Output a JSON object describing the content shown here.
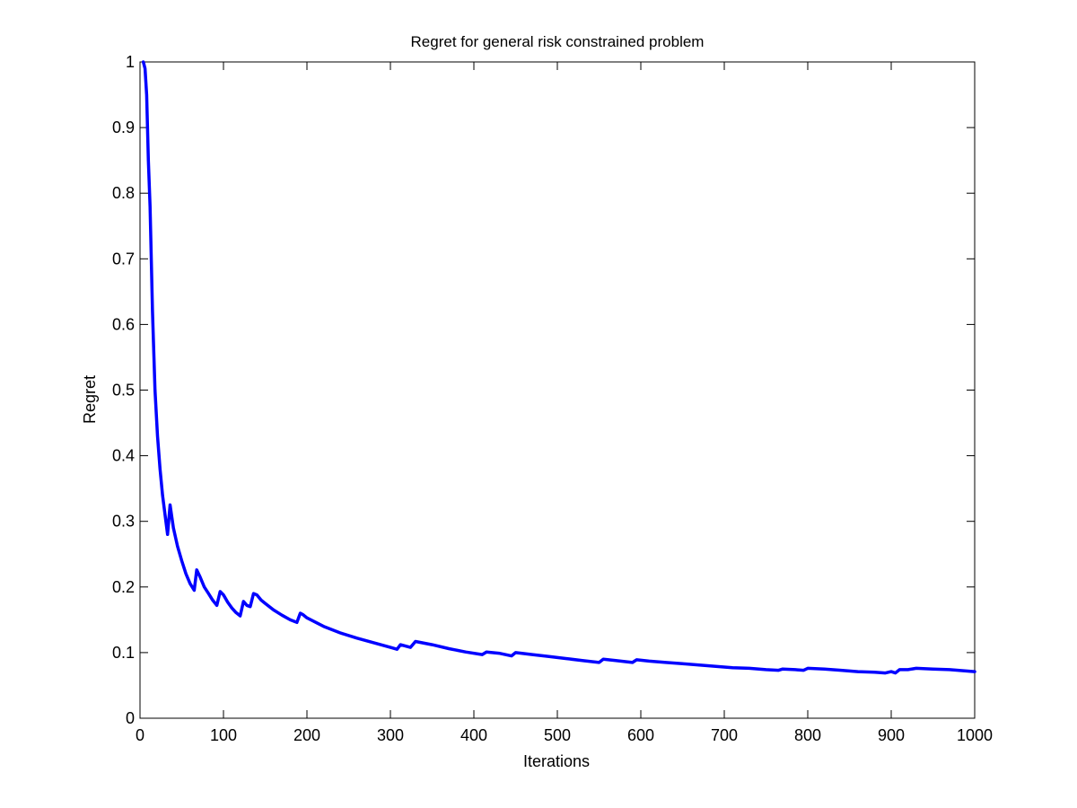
{
  "chart_data": {
    "type": "line",
    "title": "Regret for general risk constrained problem",
    "xlabel": "Iterations",
    "ylabel": "Regret",
    "xlim": [
      0,
      1000
    ],
    "ylim": [
      0,
      1
    ],
    "x_ticks": [
      0,
      100,
      200,
      300,
      400,
      500,
      600,
      700,
      800,
      900,
      1000
    ],
    "y_ticks": [
      0,
      0.1,
      0.2,
      0.3,
      0.4,
      0.5,
      0.6,
      0.7,
      0.8,
      0.9,
      1
    ],
    "x_tick_labels": [
      "0",
      "100",
      "200",
      "300",
      "400",
      "500",
      "600",
      "700",
      "800",
      "900",
      "1000"
    ],
    "y_tick_labels": [
      "0",
      "0.1",
      "0.2",
      "0.3",
      "0.4",
      "0.5",
      "0.6",
      "0.7",
      "0.8",
      "0.9",
      "1"
    ],
    "grid": false,
    "line_color": "#0000ff",
    "series": [
      {
        "x": [
          4,
          6,
          8,
          10,
          12,
          15,
          18,
          21,
          24,
          27,
          30,
          33,
          36,
          40,
          45,
          50,
          55,
          60,
          65,
          68,
          72,
          77,
          82,
          87,
          92,
          96,
          100,
          105,
          110,
          115,
          120,
          124,
          128,
          132,
          136,
          140,
          145,
          150,
          160,
          170,
          180,
          188,
          192,
          195,
          200,
          220,
          240,
          260,
          280,
          300,
          308,
          312,
          318,
          324,
          330,
          350,
          370,
          390,
          410,
          415,
          430,
          445,
          450,
          470,
          490,
          510,
          530,
          550,
          555,
          570,
          590,
          595,
          610,
          630,
          650,
          670,
          690,
          710,
          730,
          750,
          765,
          770,
          785,
          795,
          800,
          820,
          840,
          860,
          880,
          893,
          900,
          905,
          910,
          920,
          930,
          950,
          970,
          990,
          1000
        ],
        "y": [
          1.0,
          0.99,
          0.95,
          0.85,
          0.78,
          0.62,
          0.5,
          0.43,
          0.38,
          0.34,
          0.31,
          0.28,
          0.325,
          0.29,
          0.262,
          0.24,
          0.22,
          0.205,
          0.195,
          0.226,
          0.215,
          0.2,
          0.19,
          0.18,
          0.172,
          0.193,
          0.188,
          0.177,
          0.168,
          0.161,
          0.156,
          0.178,
          0.172,
          0.17,
          0.19,
          0.188,
          0.18,
          0.175,
          0.165,
          0.157,
          0.15,
          0.146,
          0.16,
          0.158,
          0.153,
          0.14,
          0.13,
          0.122,
          0.115,
          0.108,
          0.105,
          0.112,
          0.11,
          0.108,
          0.117,
          0.112,
          0.106,
          0.101,
          0.097,
          0.101,
          0.099,
          0.095,
          0.1,
          0.097,
          0.094,
          0.091,
          0.088,
          0.085,
          0.09,
          0.088,
          0.085,
          0.089,
          0.087,
          0.085,
          0.083,
          0.081,
          0.079,
          0.077,
          0.076,
          0.074,
          0.073,
          0.075,
          0.074,
          0.073,
          0.076,
          0.075,
          0.073,
          0.071,
          0.07,
          0.069,
          0.071,
          0.069,
          0.074,
          0.074,
          0.076,
          0.075,
          0.074,
          0.072,
          0.071
        ]
      }
    ]
  }
}
